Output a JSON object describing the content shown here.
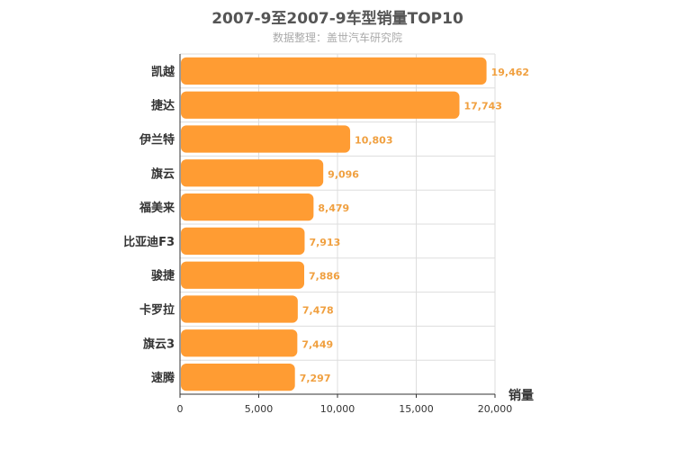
{
  "chart_data": {
    "type": "bar",
    "orientation": "horizontal",
    "title": "2007-9至2007-9车型销量TOP10",
    "subtitle": "数据整理：盖世汽车研究院",
    "xlabel": "销量",
    "ylabel": "",
    "xlim": [
      0,
      20000
    ],
    "xticks": [
      "0",
      "5,000",
      "10,000",
      "15,000",
      "20,000"
    ],
    "xtick_values": [
      0,
      5000,
      10000,
      15000,
      20000
    ],
    "grid": true,
    "bar_color": "#ff9c33",
    "label_color": "#f0a040",
    "categories": [
      "凯越",
      "捷达",
      "伊兰特",
      "旗云",
      "福美来",
      "比亚迪F3",
      "骏捷",
      "卡罗拉",
      "旗云3",
      "速腾"
    ],
    "values": [
      19462,
      17743,
      10803,
      9096,
      8479,
      7913,
      7886,
      7478,
      7449,
      7297
    ],
    "value_labels": [
      "19,462",
      "17,743",
      "10,803",
      "9,096",
      "8,479",
      "7,913",
      "7,886",
      "7,478",
      "7,449",
      "7,297"
    ]
  }
}
